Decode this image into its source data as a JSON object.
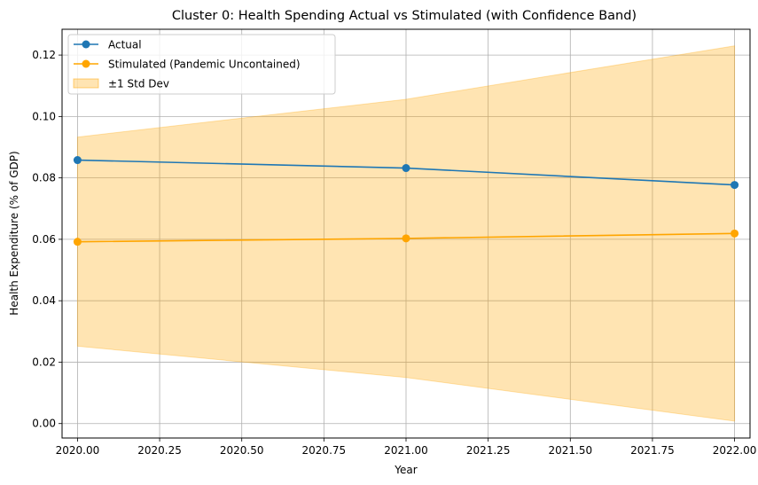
{
  "chart_data": {
    "type": "line",
    "title": "Cluster 0: Health Spending Actual vs Stimulated (with Confidence Band)",
    "xlabel": "Year",
    "ylabel": "Health Expenditure (% of GDP)",
    "x": [
      2020,
      2021,
      2022
    ],
    "xlim": [
      2019.953,
      2022.047
    ],
    "ylim": [
      -0.0047,
      0.1284
    ],
    "xticks": [
      "2020.00",
      "2020.25",
      "2020.50",
      "2020.75",
      "2021.00",
      "2021.25",
      "2021.50",
      "2021.75",
      "2022.00"
    ],
    "xtick_values": [
      2020.0,
      2020.25,
      2020.5,
      2020.75,
      2021.0,
      2021.25,
      2021.5,
      2021.75,
      2022.0
    ],
    "yticks": [
      "0.00",
      "0.02",
      "0.04",
      "0.06",
      "0.08",
      "0.10",
      "0.12"
    ],
    "ytick_values": [
      0.0,
      0.02,
      0.04,
      0.06,
      0.08,
      0.1,
      0.12
    ],
    "grid": true,
    "legend_position": "top-left",
    "series": [
      {
        "name": "Actual",
        "values": [
          0.0858,
          0.0832,
          0.0777
        ],
        "color": "#1f77b4",
        "marker": "circle"
      },
      {
        "name": "Stimulated (Pandemic Uncontained)",
        "values": [
          0.0592,
          0.0603,
          0.0619
        ],
        "color": "#ffa500",
        "marker": "circle"
      }
    ],
    "band": {
      "name": "±1 Std Dev",
      "lower": [
        0.0252,
        0.015,
        0.0008
      ],
      "upper": [
        0.0933,
        0.1056,
        0.123
      ],
      "color": "#ffa500",
      "opacity": 0.3
    }
  }
}
